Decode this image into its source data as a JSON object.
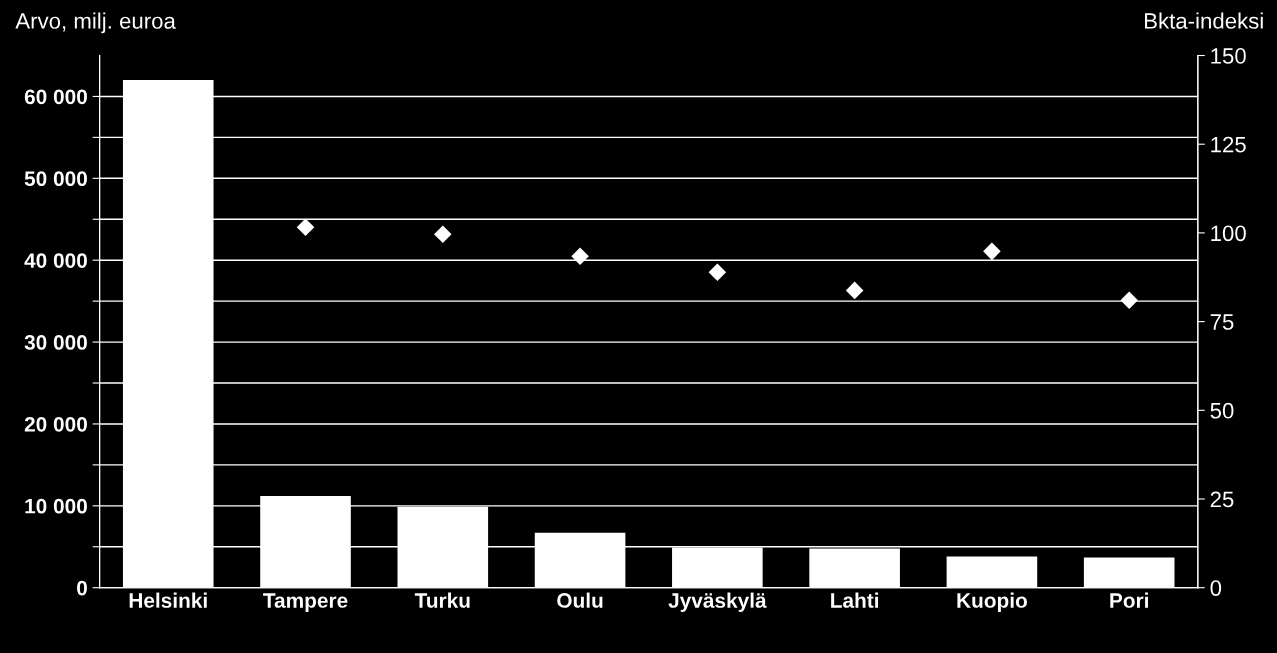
{
  "chart_data": {
    "type": "bar",
    "ylabel": "Arvo, milj. euroa",
    "y2label": "Bkta-indeksi",
    "categories": [
      "Helsinki",
      "Tampere",
      "Turku",
      "Oulu",
      "Jyväskylä",
      "Lahti",
      "Kuopio",
      "Pori"
    ],
    "series": [
      {
        "color": "#ffffff",
        "values": [
          62000,
          11200,
          9900,
          6700,
          4900,
          4800,
          3800,
          3700
        ]
      },
      {
        "type": "scatter",
        "axis": "y2",
        "color": "#ffffff",
        "marker": "diamond",
        "values": [
          null,
          101.6,
          99.6,
          93.4,
          88.9,
          83.8,
          94.8,
          81
        ]
      }
    ],
    "ylim": [
      0,
      65000
    ],
    "yticks": [
      {
        "value": 0,
        "label": "0"
      },
      {
        "value": 5000,
        "label": null
      },
      {
        "value": 10000,
        "label": "10 000"
      },
      {
        "value": 15000,
        "label": null
      },
      {
        "value": 20000,
        "label": "20 000"
      },
      {
        "value": 25000,
        "label": null
      },
      {
        "value": 30000,
        "label": "30 000"
      },
      {
        "value": 35000,
        "label": null
      },
      {
        "value": 40000,
        "label": "40 000"
      },
      {
        "value": 45000,
        "label": null
      },
      {
        "value": 50000,
        "label": "50 000"
      },
      {
        "value": 55000,
        "label": null
      },
      {
        "value": 60000,
        "label": "60 000"
      }
    ],
    "y2lim": [
      0,
      150
    ],
    "y2ticks": [
      0,
      25,
      50,
      75,
      100,
      125,
      150
    ],
    "grid": "y"
  }
}
